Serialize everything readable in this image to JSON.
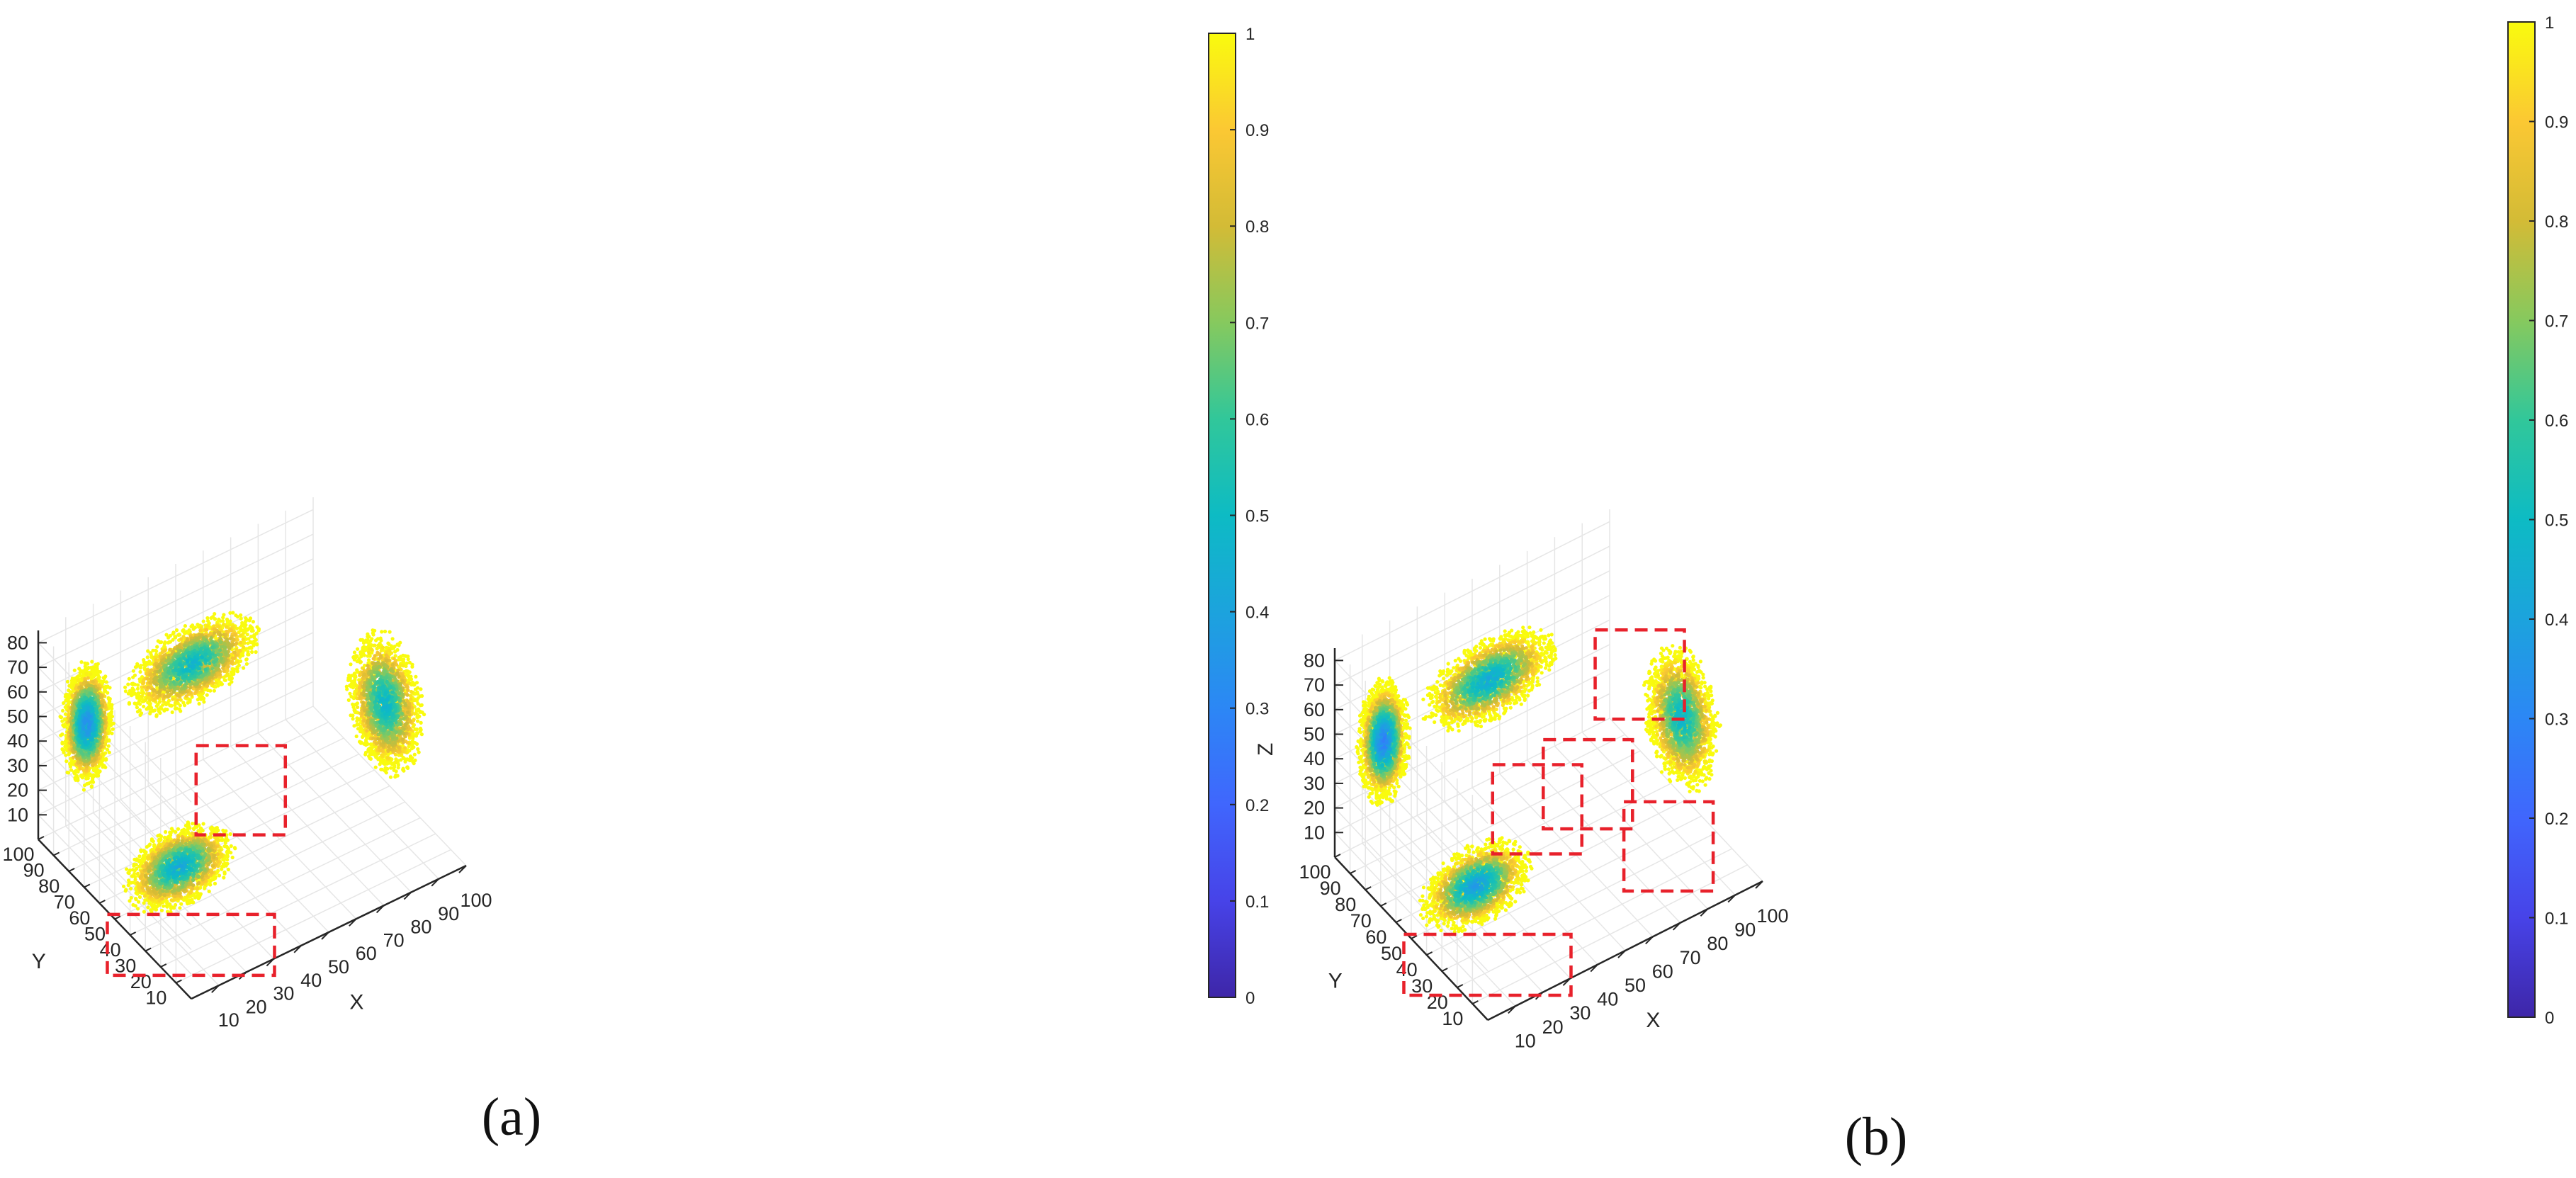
{
  "chart_data": [
    {
      "panel": "(a)",
      "type": "scatter",
      "title": "",
      "axes": {
        "x": {
          "label": "X",
          "ticks": [
            10,
            20,
            30,
            40,
            50,
            60,
            70,
            80,
            90,
            100
          ],
          "range": [
            0,
            100
          ]
        },
        "y": {
          "label": "Y",
          "ticks": [
            10,
            20,
            30,
            40,
            50,
            60,
            70,
            80,
            90,
            100
          ],
          "range": [
            0,
            100
          ]
        },
        "z": {
          "label": "Z",
          "ticks": [
            10,
            20,
            30,
            40,
            50,
            60,
            70,
            80
          ],
          "range": [
            0,
            85
          ]
        }
      },
      "colorbar": {
        "ticks": [
          "0",
          "0.1",
          "0.2",
          "0.3",
          "0.4",
          "0.5",
          "0.6",
          "0.7",
          "0.8",
          "0.9",
          "1"
        ],
        "range": [
          0,
          1
        ],
        "colormap": "parula"
      },
      "grid": true,
      "highlight_box_color": "#e8212b",
      "highlight_boxes": [
        {
          "x": 11,
          "y": 20,
          "z": 3
        },
        {
          "x": 28,
          "y": 18,
          "z": 58
        }
      ],
      "clusters": [
        {
          "center": [
            15,
            95,
            42
          ],
          "spread": [
            9,
            8,
            26
          ],
          "value_at_center": 0.3
        },
        {
          "center": [
            18,
            40,
            18
          ],
          "spread": [
            20,
            12,
            14
          ],
          "value_at_center": 0.4
        },
        {
          "center": [
            45,
            80,
            60
          ],
          "spread": [
            25,
            9,
            16
          ],
          "value_at_center": 0.45
        },
        {
          "center": [
            94,
            42,
            42
          ],
          "spread": [
            9,
            20,
            28
          ],
          "value_at_center": 0.45
        }
      ]
    },
    {
      "panel": "(b)",
      "type": "scatter",
      "title": "",
      "axes": {
        "x": {
          "label": "X",
          "ticks": [
            10,
            20,
            30,
            40,
            50,
            60,
            70,
            80,
            90,
            100
          ],
          "range": [
            0,
            100
          ]
        },
        "y": {
          "label": "Y",
          "ticks": [
            10,
            20,
            30,
            40,
            50,
            60,
            70,
            80,
            90,
            100
          ],
          "range": [
            0,
            100
          ]
        },
        "z": {
          "label": "Z",
          "ticks": [
            10,
            20,
            30,
            40,
            50,
            60,
            70,
            80
          ],
          "range": [
            0,
            85
          ]
        }
      },
      "colorbar": {
        "ticks": [
          "0",
          "0.1",
          "0.2",
          "0.3",
          "0.4",
          "0.5",
          "0.6",
          "0.7",
          "0.8",
          "0.9",
          "1"
        ],
        "range": [
          0,
          1
        ],
        "colormap": "parula"
      },
      "grid": true,
      "highlight_box_color": "#e8212b",
      "highlight_boxes": [
        {
          "x": 11,
          "y": 20,
          "z": 3
        },
        {
          "x": 28,
          "y": 18,
          "z": 58
        },
        {
          "x": 52,
          "y": 28,
          "z": 48
        },
        {
          "x": 72,
          "y": 30,
          "z": 80
        },
        {
          "x": 78,
          "y": 22,
          "z": 12
        }
      ],
      "clusters": [
        {
          "center": [
            15,
            95,
            42
          ],
          "spread": [
            9,
            8,
            26
          ],
          "value_at_center": 0.25
        },
        {
          "center": [
            18,
            40,
            18
          ],
          "spread": [
            20,
            12,
            14
          ],
          "value_at_center": 0.35
        },
        {
          "center": [
            45,
            80,
            60
          ],
          "spread": [
            25,
            9,
            16
          ],
          "value_at_center": 0.4
        },
        {
          "center": [
            94,
            42,
            42
          ],
          "spread": [
            9,
            20,
            28
          ],
          "value_at_center": 0.45
        }
      ]
    }
  ],
  "captions": [
    "(a)",
    "(b)"
  ]
}
